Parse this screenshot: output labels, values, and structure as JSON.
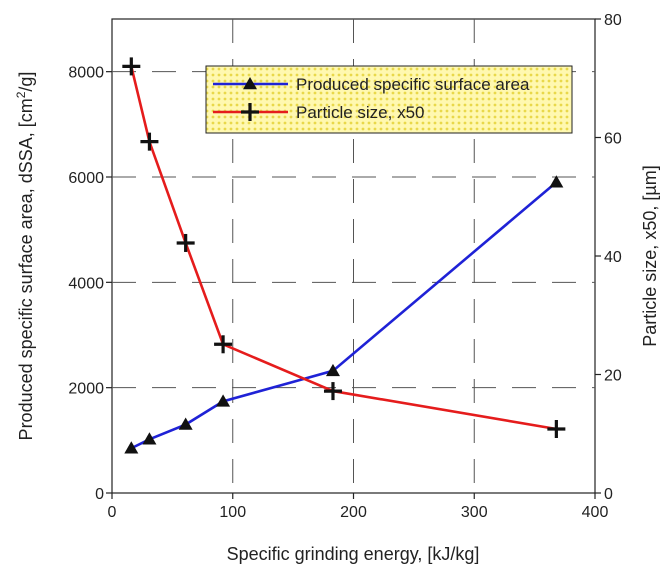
{
  "chart_data": {
    "type": "line",
    "xlabel": "Specific grinding energy, [kJ/kg]",
    "ylabel_left": {
      "prefix": "Produced specific surface area, dSSA, [cm",
      "sup": "2",
      "suffix": "/g]"
    },
    "ylabel_right": "Particle size, x50, [µm]",
    "xlim": [
      0,
      400
    ],
    "ylim_left": [
      0,
      9000
    ],
    "ylim_right": [
      0,
      80
    ],
    "x_ticks": [
      0,
      100,
      200,
      300,
      400
    ],
    "y_left_ticks": [
      0,
      2000,
      4000,
      6000,
      8000
    ],
    "y_right_ticks": [
      0,
      20,
      40,
      60,
      80
    ],
    "grid": "dashed",
    "legend_position": "top-right",
    "series": [
      {
        "name": "Produced specific surface area",
        "axis": "left",
        "color": "#1f22d6",
        "marker": "triangle",
        "x": [
          16,
          31,
          61,
          92,
          183,
          368
        ],
        "y": [
          850,
          1020,
          1300,
          1740,
          2320,
          5900
        ]
      },
      {
        "name": "Particle size, x50",
        "axis": "right",
        "color": "#e51c1c",
        "marker": "plus",
        "x": [
          16,
          31,
          61,
          92,
          183,
          368
        ],
        "y": [
          72,
          59.3,
          42.2,
          25.1,
          17.2,
          10.8
        ]
      }
    ]
  }
}
